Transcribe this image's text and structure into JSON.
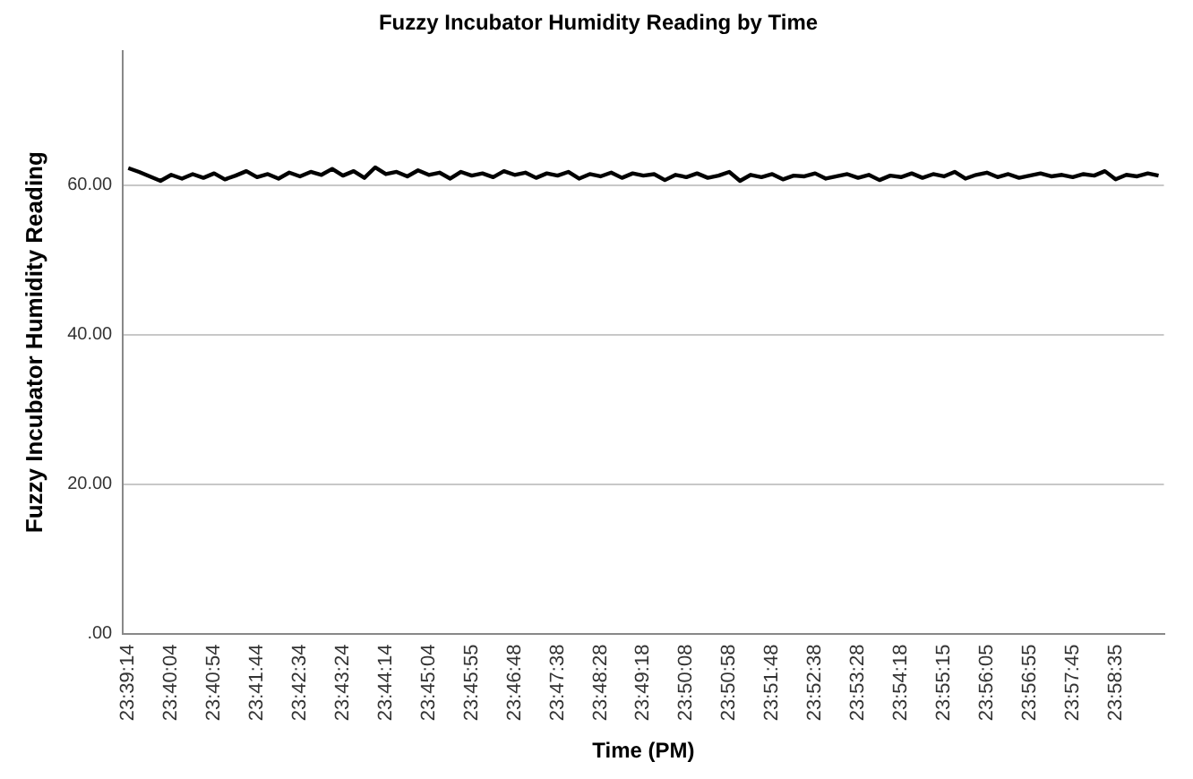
{
  "chart_data": {
    "type": "line",
    "title": "Fuzzy Incubator Humidity Reading by Time",
    "xlabel": "Time (PM)",
    "ylabel": "Fuzzy Incubator Humidity Reading",
    "categories": [
      "23:39:14",
      null,
      null,
      null,
      "23:40:04",
      null,
      null,
      null,
      "23:40:54",
      null,
      null,
      null,
      "23:41:44",
      null,
      null,
      null,
      "23:42:34",
      null,
      null,
      null,
      "23:43:24",
      null,
      null,
      null,
      "23:44:14",
      null,
      null,
      null,
      "23:45:04",
      null,
      null,
      null,
      "23:45:55",
      null,
      null,
      null,
      "23:46:48",
      null,
      null,
      null,
      "23:47:38",
      null,
      null,
      null,
      "23:48:28",
      null,
      null,
      null,
      "23:49:18",
      null,
      null,
      null,
      "23:50:08",
      null,
      null,
      null,
      "23:50:58",
      null,
      null,
      null,
      "23:51:48",
      null,
      null,
      null,
      "23:52:38",
      null,
      null,
      null,
      "23:53:28",
      null,
      null,
      null,
      "23:54:18",
      null,
      null,
      null,
      "23:55:15",
      null,
      null,
      null,
      "23:56:05",
      null,
      null,
      null,
      "23:56:55",
      null,
      null,
      null,
      "23:57:45",
      null,
      null,
      null,
      "23:58:35",
      null,
      null,
      null,
      null
    ],
    "series": [
      {
        "color": "#000000",
        "values": [
          62.3,
          61.8,
          61.2,
          60.6,
          61.4,
          60.9,
          61.5,
          61.0,
          61.6,
          60.8,
          61.3,
          61.9,
          61.1,
          61.5,
          60.9,
          61.7,
          61.2,
          61.8,
          61.4,
          62.2,
          61.3,
          61.9,
          61.0,
          62.4,
          61.5,
          61.8,
          61.2,
          62.0,
          61.4,
          61.7,
          60.9,
          61.8,
          61.3,
          61.6,
          61.1,
          61.9,
          61.4,
          61.7,
          61.0,
          61.6,
          61.3,
          61.8,
          60.9,
          61.5,
          61.2,
          61.7,
          61.0,
          61.6,
          61.3,
          61.5,
          60.7,
          61.4,
          61.1,
          61.6,
          61.0,
          61.3,
          61.8,
          60.6,
          61.4,
          61.1,
          61.5,
          60.8,
          61.3,
          61.2,
          61.6,
          60.9,
          61.2,
          61.5,
          61.0,
          61.4,
          60.7,
          61.3,
          61.1,
          61.6,
          61.0,
          61.5,
          61.2,
          61.8,
          60.9,
          61.4,
          61.7,
          61.1,
          61.5,
          61.0,
          61.3,
          61.6,
          61.2,
          61.4,
          61.1,
          61.5,
          61.3,
          61.9,
          60.8,
          61.4,
          61.2,
          61.6,
          61.3
        ]
      }
    ],
    "ylim": [
      0,
      78
    ],
    "yticks": [
      {
        "value": 0,
        "label": ".00"
      },
      {
        "value": 20,
        "label": "20.00"
      },
      {
        "value": 40,
        "label": "40.00"
      },
      {
        "value": 60,
        "label": "60.00"
      }
    ],
    "grid": "y",
    "marker": "none",
    "line_style": "solid"
  }
}
